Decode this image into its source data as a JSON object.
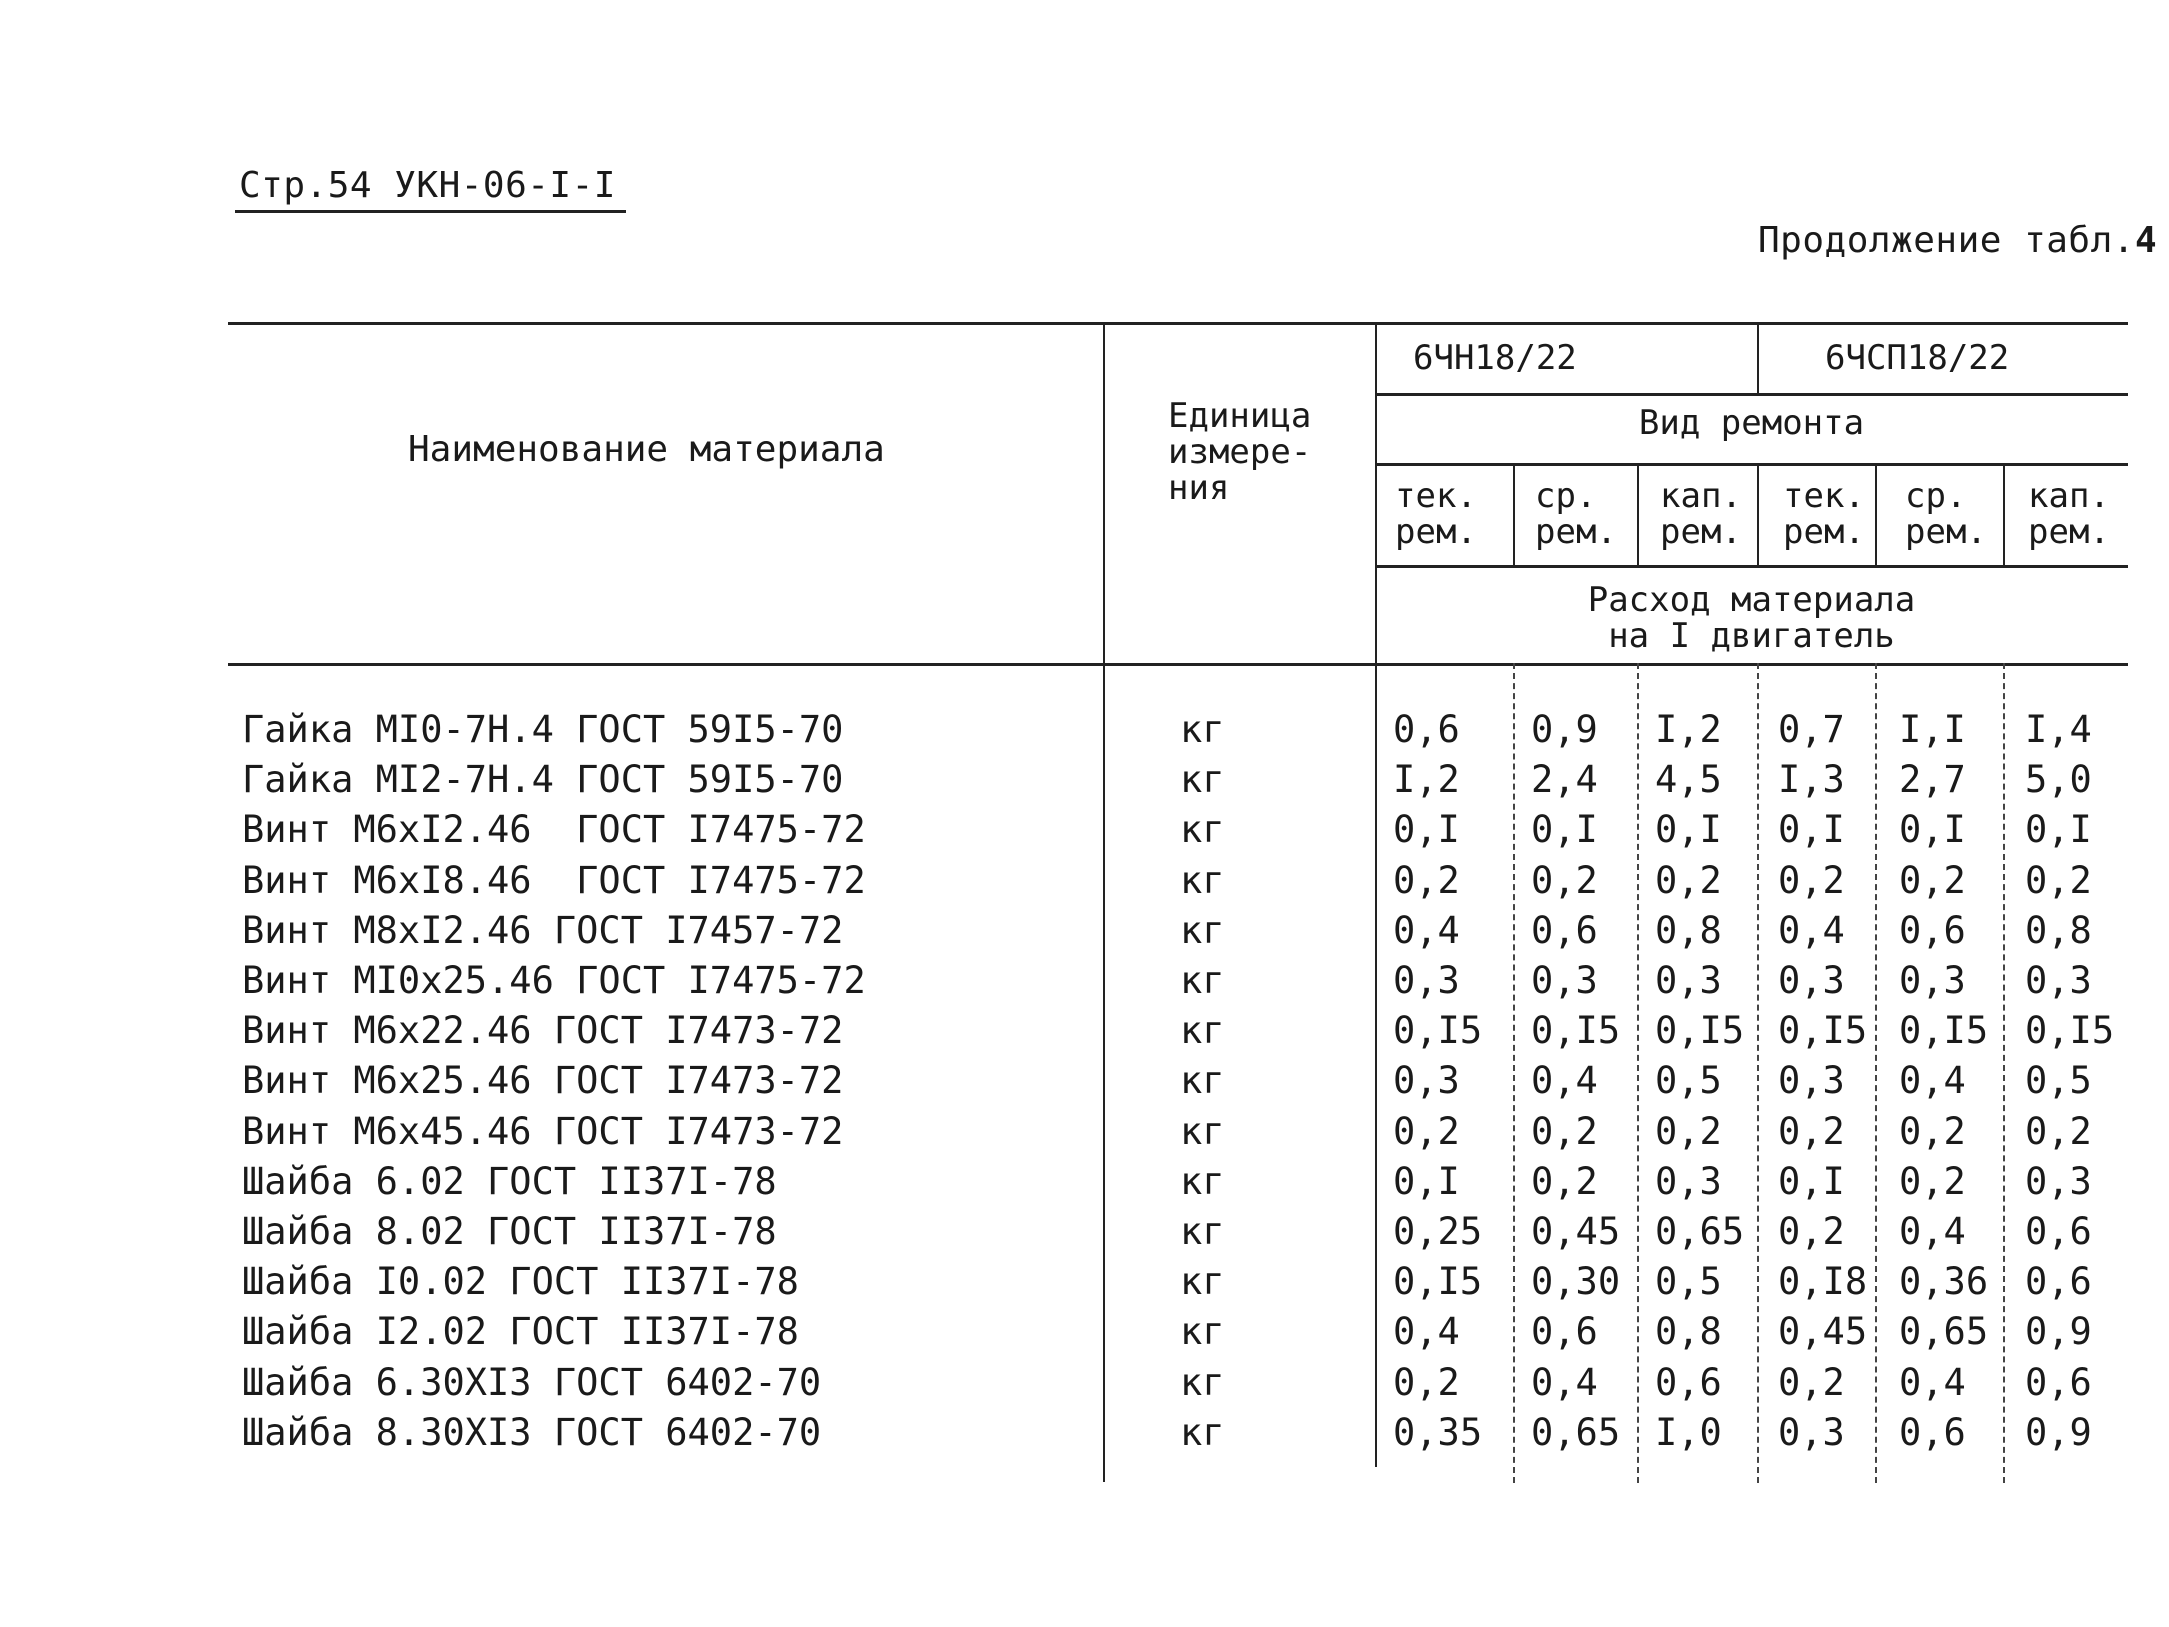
{
  "page_header": "Стр.54 УКН-06-I-I",
  "continuation": {
    "text": "Продолжение табл.",
    "number": "4"
  },
  "table": {
    "col_name_header": "Наименование материала",
    "col_unit_header": [
      "Единица",
      "измере-",
      "ния"
    ],
    "engine_a": "6ЧН18/22",
    "engine_b": "6ЧСП18/22",
    "repair_type_header": "Вид ремонта",
    "repair_types": [
      [
        "тек.",
        "рем."
      ],
      [
        "ср.",
        "рем."
      ],
      [
        "кап.",
        "рем."
      ],
      [
        "тек.",
        "рем."
      ],
      [
        "ср.",
        "рем."
      ],
      [
        "кап.",
        "рем."
      ]
    ],
    "consumption_header": [
      "Расход материала",
      "на I двигатель"
    ],
    "rows": [
      {
        "name": "Гайка МI0-7Н.4 ГОСТ 59I5-70",
        "unit": "кг",
        "values": [
          "0,6",
          "0,9",
          "I,2",
          "0,7",
          "I,I",
          "I,4"
        ]
      },
      {
        "name": "Гайка МI2-7Н.4 ГОСТ 59I5-70",
        "unit": "кг",
        "values": [
          "I,2",
          "2,4",
          "4,5",
          "I,3",
          "2,7",
          "5,0"
        ]
      },
      {
        "name": "Винт М6хI2.46  ГОСТ I7475-72",
        "unit": "кг",
        "values": [
          "0,I",
          "0,I",
          "0,I",
          "0,I",
          "0,I",
          "0,I"
        ]
      },
      {
        "name": "Винт М6хI8.46  ГОСТ I7475-72",
        "unit": "кг",
        "values": [
          "0,2",
          "0,2",
          "0,2",
          "0,2",
          "0,2",
          "0,2"
        ]
      },
      {
        "name": "Винт М8хI2.46 ГОСТ I7457-72",
        "unit": "кг",
        "values": [
          "0,4",
          "0,6",
          "0,8",
          "0,4",
          "0,6",
          "0,8"
        ]
      },
      {
        "name": "Винт МI0х25.46 ГОСТ I7475-72",
        "unit": "кг",
        "values": [
          "0,3",
          "0,3",
          "0,3",
          "0,3",
          "0,3",
          "0,3"
        ]
      },
      {
        "name": "Винт М6х22.46 ГОСТ I7473-72",
        "unit": "кг",
        "values": [
          "0,I5",
          "0,I5",
          "0,I5",
          "0,I5",
          "0,I5",
          "0,I5"
        ]
      },
      {
        "name": "Винт М6х25.46 ГОСТ I7473-72",
        "unit": "кг",
        "values": [
          "0,3",
          "0,4",
          "0,5",
          "0,3",
          "0,4",
          "0,5"
        ]
      },
      {
        "name": "Винт М6х45.46 ГОСТ I7473-72",
        "unit": "кг",
        "values": [
          "0,2",
          "0,2",
          "0,2",
          "0,2",
          "0,2",
          "0,2"
        ]
      },
      {
        "name": "Шайба 6.02 ГОСТ II37I-78",
        "unit": "кг",
        "values": [
          "0,I",
          "0,2",
          "0,3",
          "0,I",
          "0,2",
          "0,3"
        ]
      },
      {
        "name": "Шайба 8.02 ГОСТ II37I-78",
        "unit": "кг",
        "values": [
          "0,25",
          "0,45",
          "0,65",
          "0,2",
          "0,4",
          "0,6"
        ]
      },
      {
        "name": "Шайба I0.02 ГОСТ II37I-78",
        "unit": "кг",
        "values": [
          "0,I5",
          "0,30",
          "0,5",
          "0,I8",
          "0,36",
          "0,6"
        ]
      },
      {
        "name": "Шайба I2.02 ГОСТ II37I-78",
        "unit": "кг",
        "values": [
          "0,4",
          "0,6",
          "0,8",
          "0,45",
          "0,65",
          "0,9"
        ]
      },
      {
        "name": "Шайба 6.30ХI3 ГОСТ 6402-70",
        "unit": "кг",
        "values": [
          "0,2",
          "0,4",
          "0,6",
          "0,2",
          "0,4",
          "0,6"
        ]
      },
      {
        "name": "Шайба 8.30ХI3 ГОСТ 6402-70",
        "unit": "кг",
        "values": [
          "0,35",
          "0,65",
          "I,0",
          "0,3",
          "0,6",
          "0,9"
        ]
      }
    ]
  }
}
